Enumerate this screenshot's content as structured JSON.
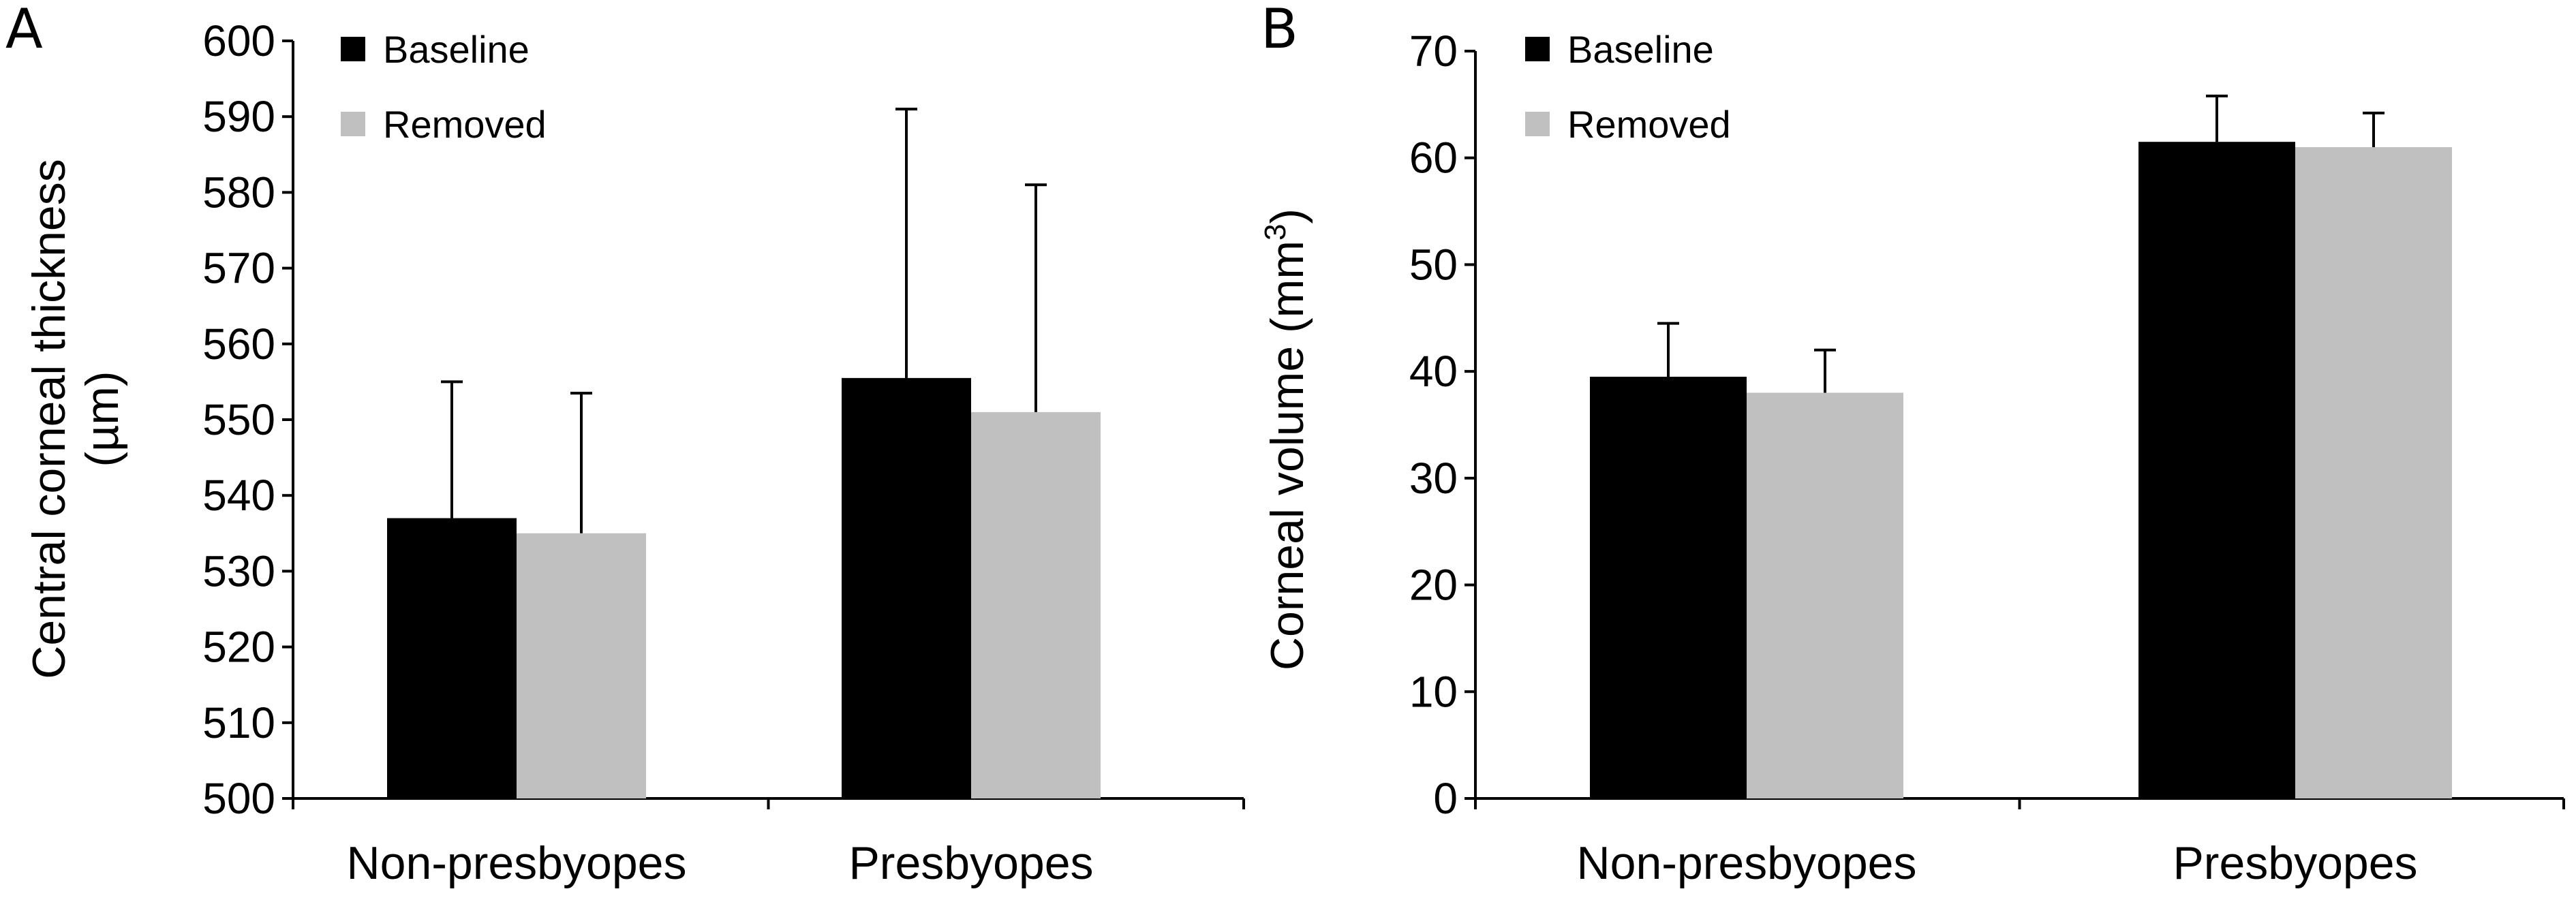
{
  "chart_data": [
    {
      "type": "bar",
      "panel_label": "A",
      "categories": [
        "Non-presbyopes",
        "Presbyopes"
      ],
      "ylabel_line1": "Central corneal thickness",
      "ylabel_line2": "(µm)",
      "ylim": [
        500,
        600
      ],
      "yticks": [
        "500",
        "510",
        "520",
        "530",
        "540",
        "550",
        "560",
        "570",
        "580",
        "590",
        "600"
      ],
      "grid": false,
      "legend": "top-left",
      "series": [
        {
          "name": "Baseline",
          "color": "#000000",
          "values": [
            537,
            555.5
          ],
          "errors": [
            18,
            35.5
          ]
        },
        {
          "name": "Removed",
          "color": "#c0c0c0",
          "values": [
            535,
            551
          ],
          "errors": [
            18.5,
            30
          ]
        }
      ]
    },
    {
      "type": "bar",
      "panel_label": "B",
      "categories": [
        "Non-presbyopes",
        "Presbyopes"
      ],
      "ylabel": "Corneal volume (mm",
      "ylabel_sup": "3",
      "ylabel_end": ")",
      "ylim": [
        0,
        70
      ],
      "yticks": [
        "0",
        "10",
        "20",
        "30",
        "40",
        "50",
        "60",
        "70"
      ],
      "grid": false,
      "legend": "top-left",
      "series": [
        {
          "name": "Baseline",
          "color": "#000000",
          "values": [
            39.5,
            61.5
          ],
          "errors": [
            5,
            4.3
          ]
        },
        {
          "name": "Removed",
          "color": "#c0c0c0",
          "values": [
            38,
            61
          ],
          "errors": [
            4,
            3.2
          ]
        }
      ]
    }
  ]
}
